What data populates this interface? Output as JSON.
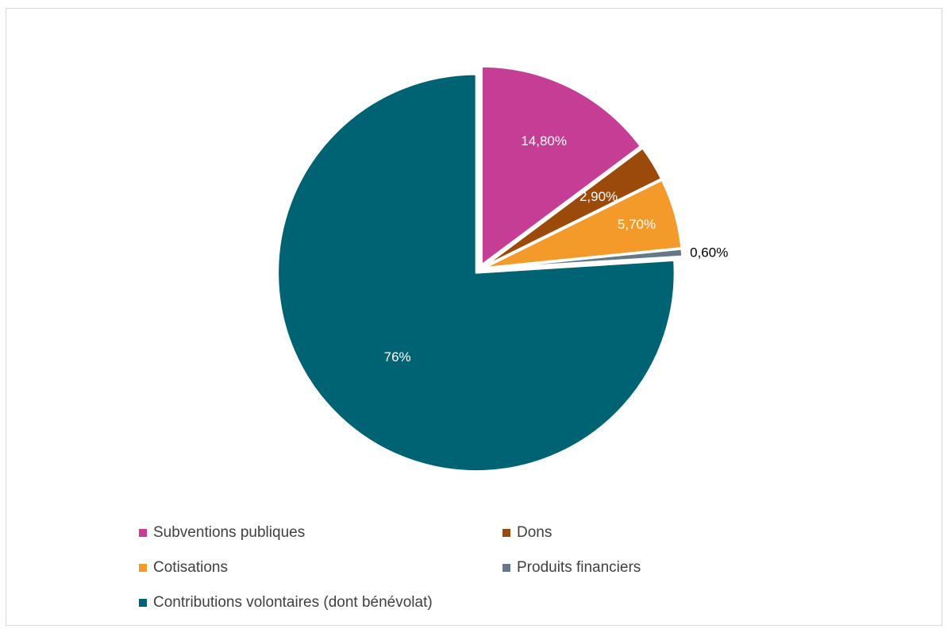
{
  "chart_data": {
    "type": "pie",
    "title": "",
    "start_angle_deg": 0,
    "direction": "clockwise",
    "exploded": true,
    "slices": [
      {
        "label": "Subventions publiques",
        "value": 14.8,
        "display": "14,80%",
        "color": "#c63d96",
        "label_color": "#ffffff"
      },
      {
        "label": "Dons",
        "value": 2.9,
        "display": "2,90%",
        "color": "#9c4a0a",
        "label_color": "#ffffff"
      },
      {
        "label": "Cotisations",
        "value": 5.7,
        "display": "5,70%",
        "color": "#f39a2b",
        "label_color": "#ffffff"
      },
      {
        "label": "Produits financiers",
        "value": 0.6,
        "display": "0,60%",
        "color": "#64788a",
        "label_color": "#000000"
      },
      {
        "label": "Contributions volontaires (dont bénévolat)",
        "value": 76,
        "display": "76%",
        "color": "#006373",
        "label_color": "#ffffff"
      }
    ],
    "legend": {
      "placement": "bottom",
      "entries": [
        "Subventions publiques",
        "Dons",
        "Cotisations",
        "Produits financiers",
        "Contributions volontaires (dont bénévolat)"
      ]
    }
  }
}
